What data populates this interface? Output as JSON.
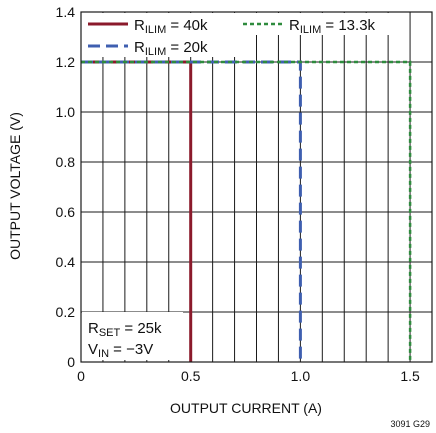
{
  "chart_data": {
    "type": "line",
    "xlabel": "OUTPUT CURRENT (A)",
    "ylabel": "OUTPUT VOLTAGE (V)",
    "xlim": [
      0,
      1.6
    ],
    "ylim": [
      0,
      1.4
    ],
    "x_ticks": [
      0,
      0.5,
      1.0,
      1.5
    ],
    "x_tick_labels": [
      "0",
      "0.5",
      "1.0",
      "1.5"
    ],
    "y_ticks": [
      0,
      0.2,
      0.4,
      0.6,
      0.8,
      1.0,
      1.2,
      1.4
    ],
    "y_tick_labels": [
      "0",
      "0.2",
      "0.4",
      "0.6",
      "0.8",
      "1.0",
      "1.2",
      "1.4"
    ],
    "grid": true,
    "series": [
      {
        "name": "R_ILIM = 40k",
        "legend_main": "R",
        "legend_sub": "ILIM",
        "legend_tail": " = 40k",
        "color": "#8B1A2B",
        "style": "solid",
        "x": [
          0,
          0.5,
          0.5
        ],
        "y": [
          1.2,
          1.2,
          0
        ]
      },
      {
        "name": "R_ILIM = 20k",
        "legend_main": "R",
        "legend_sub": "ILIM",
        "legend_tail": " = 20k",
        "color": "#3F5FB0",
        "style": "dashed",
        "x": [
          0,
          1.0,
          1.0
        ],
        "y": [
          1.2,
          1.2,
          0
        ]
      },
      {
        "name": "R_ILIM = 13.3k",
        "legend_main": "R",
        "legend_sub": "ILIM",
        "legend_tail": " = 13.3k",
        "color": "#2E8B3D",
        "style": "dotted",
        "x": [
          0,
          1.5,
          1.5
        ],
        "y": [
          1.2,
          1.2,
          0
        ]
      }
    ],
    "annotations": [
      {
        "main": "R",
        "sub": "SET",
        "tail": " = 25k"
      },
      {
        "main": "V",
        "sub": "IN",
        "tail": " = −3V"
      }
    ],
    "figure_id": "3091 G29",
    "legend_position": "top-left"
  }
}
